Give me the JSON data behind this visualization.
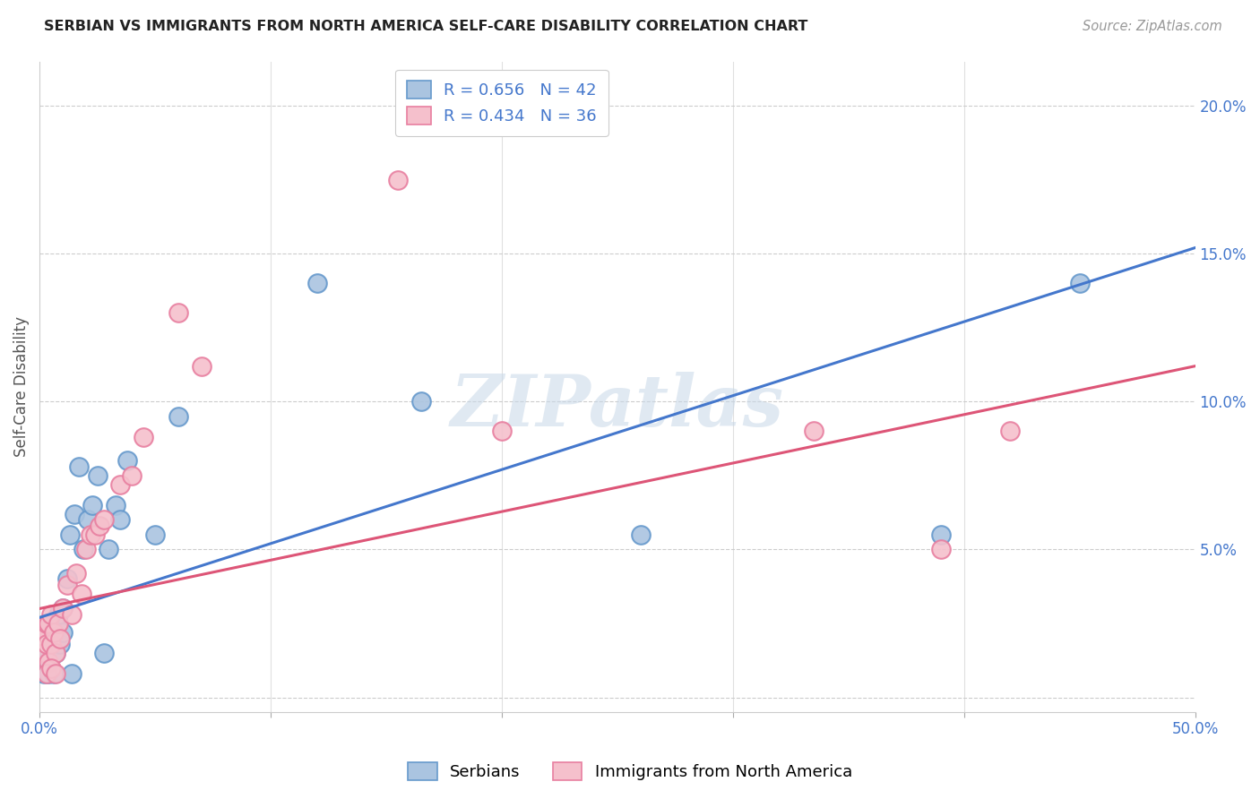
{
  "title": "SERBIAN VS IMMIGRANTS FROM NORTH AMERICA SELF-CARE DISABILITY CORRELATION CHART",
  "source": "Source: ZipAtlas.com",
  "ylabel": "Self-Care Disability",
  "xlim": [
    0.0,
    0.5
  ],
  "ylim": [
    -0.005,
    0.215
  ],
  "watermark_text": "ZIPatlas",
  "blue_R": 0.656,
  "blue_N": 42,
  "pink_R": 0.434,
  "pink_N": 36,
  "blue_fill": "#aac4e0",
  "pink_fill": "#f5c0cc",
  "blue_edge": "#6699cc",
  "pink_edge": "#e87fa0",
  "blue_line": "#4477cc",
  "pink_line": "#dd5577",
  "axis_color": "#4477cc",
  "background": "#ffffff",
  "grid_color": "#cccccc",
  "blue_line_x0": 0.0,
  "blue_line_y0": 0.027,
  "blue_line_x1": 0.5,
  "blue_line_y1": 0.152,
  "pink_line_x0": 0.0,
  "pink_line_y0": 0.03,
  "pink_line_x1": 0.5,
  "pink_line_y1": 0.112,
  "blue_scatter_x": [
    0.001,
    0.002,
    0.002,
    0.003,
    0.003,
    0.004,
    0.004,
    0.005,
    0.005,
    0.006,
    0.006,
    0.007,
    0.007,
    0.008,
    0.008,
    0.009,
    0.01,
    0.01,
    0.012,
    0.013,
    0.015,
    0.017,
    0.019,
    0.021,
    0.023,
    0.025,
    0.03,
    0.033,
    0.035,
    0.038,
    0.05,
    0.06,
    0.12,
    0.165,
    0.26,
    0.39,
    0.45,
    0.002,
    0.004,
    0.006,
    0.014,
    0.028
  ],
  "blue_scatter_y": [
    0.01,
    0.015,
    0.018,
    0.012,
    0.02,
    0.016,
    0.022,
    0.014,
    0.025,
    0.018,
    0.025,
    0.015,
    0.022,
    0.02,
    0.028,
    0.018,
    0.022,
    0.03,
    0.04,
    0.055,
    0.062,
    0.078,
    0.05,
    0.06,
    0.065,
    0.075,
    0.05,
    0.065,
    0.06,
    0.08,
    0.055,
    0.095,
    0.14,
    0.1,
    0.055,
    0.055,
    0.14,
    0.008,
    0.008,
    0.008,
    0.008,
    0.015
  ],
  "pink_scatter_x": [
    0.001,
    0.002,
    0.002,
    0.003,
    0.003,
    0.004,
    0.004,
    0.005,
    0.005,
    0.006,
    0.007,
    0.008,
    0.009,
    0.01,
    0.012,
    0.014,
    0.016,
    0.018,
    0.02,
    0.022,
    0.024,
    0.026,
    0.028,
    0.035,
    0.04,
    0.045,
    0.06,
    0.07,
    0.155,
    0.2,
    0.335,
    0.39,
    0.42,
    0.003,
    0.005,
    0.007
  ],
  "pink_scatter_y": [
    0.02,
    0.015,
    0.022,
    0.018,
    0.025,
    0.012,
    0.025,
    0.018,
    0.028,
    0.022,
    0.015,
    0.025,
    0.02,
    0.03,
    0.038,
    0.028,
    0.042,
    0.035,
    0.05,
    0.055,
    0.055,
    0.058,
    0.06,
    0.072,
    0.075,
    0.088,
    0.13,
    0.112,
    0.175,
    0.09,
    0.09,
    0.05,
    0.09,
    0.008,
    0.01,
    0.008
  ]
}
